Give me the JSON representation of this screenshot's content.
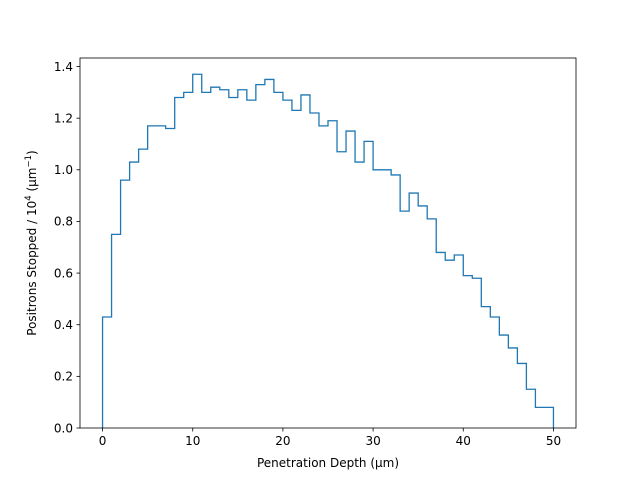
{
  "chart_data": {
    "type": "histogram",
    "title": "",
    "xlabel": "Penetration Depth (µm)",
    "ylabel_main": "Positrons Stopped / 10",
    "ylabel_exp": "4",
    "ylabel_unit_open": " (µm",
    "ylabel_unit_exp": "−1",
    "ylabel_unit_close": ")",
    "xlim": [
      -2.5,
      52.5
    ],
    "ylim": [
      0,
      1.433
    ],
    "xticks": [
      0,
      10,
      20,
      30,
      40,
      50
    ],
    "xtick_labels": [
      "0",
      "10",
      "20",
      "30",
      "40",
      "50"
    ],
    "yticks": [
      0.0,
      0.2,
      0.4,
      0.6,
      0.8,
      1.0,
      1.2,
      1.4
    ],
    "ytick_labels": [
      "0.0",
      "0.2",
      "0.4",
      "0.6",
      "0.8",
      "1.0",
      "1.2",
      "1.4"
    ],
    "series_color": "#1f77b4",
    "bin_width": 1,
    "bin_start": 0,
    "values": [
      0.43,
      0.75,
      0.96,
      1.03,
      1.08,
      1.17,
      1.17,
      1.16,
      1.28,
      1.3,
      1.37,
      1.3,
      1.32,
      1.31,
      1.28,
      1.31,
      1.27,
      1.33,
      1.35,
      1.3,
      1.27,
      1.23,
      1.29,
      1.22,
      1.17,
      1.19,
      1.07,
      1.15,
      1.03,
      1.11,
      1.0,
      1.0,
      0.98,
      0.84,
      0.91,
      0.86,
      0.81,
      0.68,
      0.65,
      0.67,
      0.59,
      0.58,
      0.47,
      0.43,
      0.36,
      0.31,
      0.25,
      0.15,
      0.08,
      0.08
    ]
  }
}
